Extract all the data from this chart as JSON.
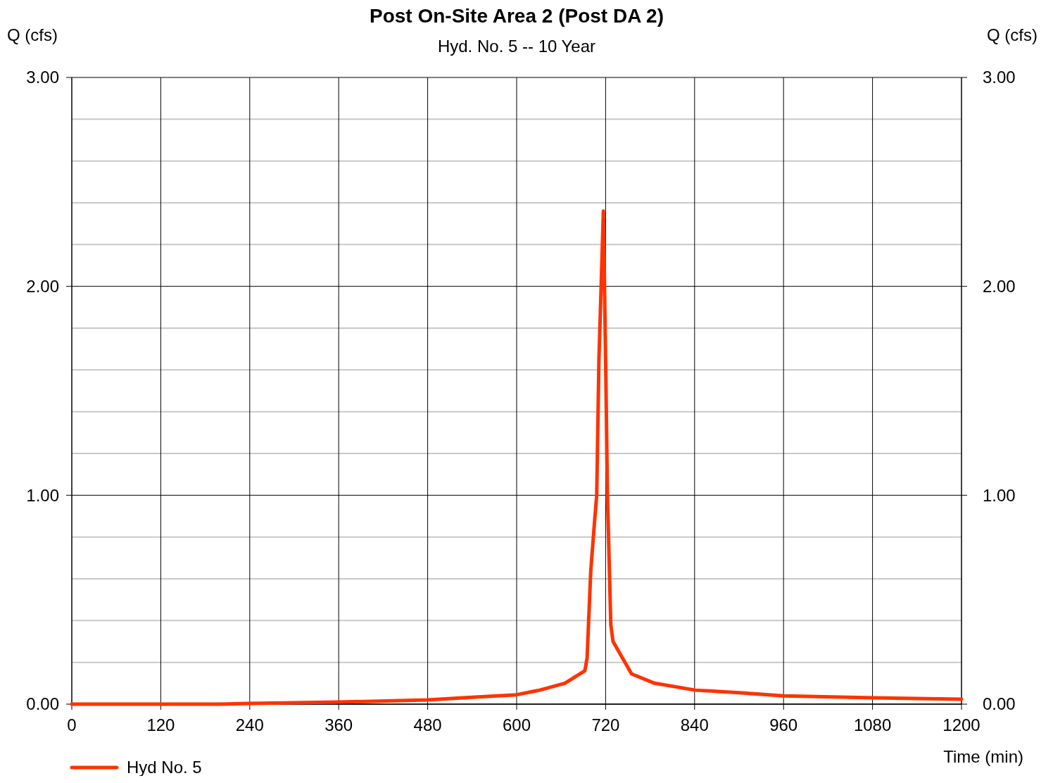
{
  "chart_data": {
    "type": "line",
    "title": "Post On-Site Area 2 (Post DA 2)",
    "subtitle": "Hyd. No. 5 -- 10 Year",
    "xlabel": "Time (min)",
    "ylabel": "Q (cfs)",
    "y2label": "Q (cfs)",
    "xlim": [
      0,
      1200
    ],
    "xticks": [
      0,
      120,
      240,
      360,
      480,
      600,
      720,
      840,
      960,
      1080,
      1200
    ],
    "ylim": [
      0,
      3
    ],
    "yticks": [
      {
        "value": 0,
        "label": "0.00"
      },
      {
        "value": 0.2,
        "label": null
      },
      {
        "value": 0.4,
        "label": null
      },
      {
        "value": 0.6,
        "label": null
      },
      {
        "value": 0.8,
        "label": null
      },
      {
        "value": 1,
        "label": "1.00"
      },
      {
        "value": 1.2,
        "label": null
      },
      {
        "value": 1.4,
        "label": null
      },
      {
        "value": 1.6,
        "label": null
      },
      {
        "value": 1.8,
        "label": null
      },
      {
        "value": 2,
        "label": "2.00"
      },
      {
        "value": 2.2,
        "label": null
      },
      {
        "value": 2.4,
        "label": null
      },
      {
        "value": 2.6,
        "label": null
      },
      {
        "value": 2.8,
        "label": null
      },
      {
        "value": 3,
        "label": "3.00"
      }
    ],
    "y2lim": [
      0,
      3
    ],
    "y2ticks": [
      {
        "value": 0,
        "label": "0.00"
      },
      {
        "value": 1,
        "label": "1.00"
      },
      {
        "value": 2,
        "label": "2.00"
      },
      {
        "value": 3,
        "label": "3.00"
      }
    ],
    "grid": true,
    "legend": "bottom left",
    "marker": "none",
    "line_style": "solid",
    "series": [
      {
        "name": "Hyd No. 5",
        "color": "#ff3300",
        "x": [
          0,
          120,
          200,
          240,
          360,
          480,
          540,
          600,
          631,
          665,
          692,
          695,
          700,
          705,
          708,
          711,
          717,
          720,
          722.5,
          727,
          730,
          755,
          786,
          841,
          900,
          960,
          1080,
          1200
        ],
        "values": [
          0,
          0,
          0,
          0.003,
          0.01,
          0.02,
          0.033,
          0.045,
          0.067,
          0.1,
          0.16,
          0.22,
          0.64,
          0.87,
          1.0,
          1.65,
          2.36,
          1.65,
          1.0,
          0.38,
          0.3,
          0.145,
          0.1,
          0.067,
          0.055,
          0.04,
          0.03,
          0.024
        ]
      }
    ]
  }
}
